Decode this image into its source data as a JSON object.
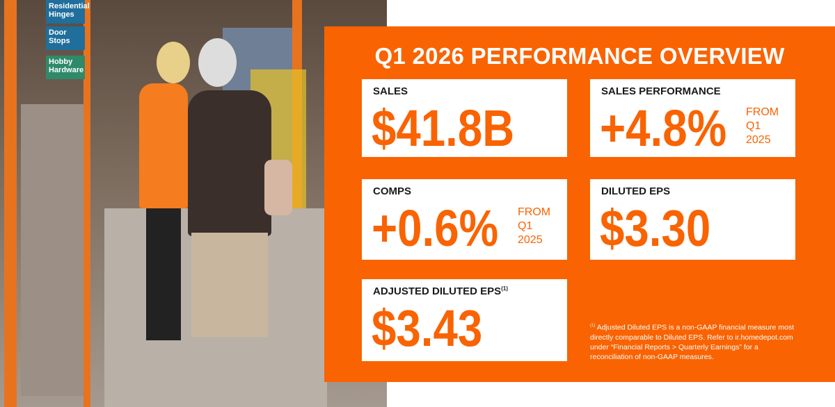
{
  "photo": {
    "signs": [
      "Residential Hinges",
      "Door Stops",
      "Hobby Hardware"
    ]
  },
  "title": "Q1 2026 PERFORMANCE OVERVIEW",
  "cards": [
    {
      "label": "SALES",
      "value": "$41.8B"
    },
    {
      "label": "SALES PERFORMANCE",
      "value": "+4.8%",
      "note": [
        "FROM",
        "Q1",
        "2025"
      ]
    },
    {
      "label": "COMPS",
      "value": "+0.6%",
      "note": [
        "FROM",
        "Q1",
        "2025"
      ]
    },
    {
      "label": "DILUTED EPS",
      "value": "$3.30"
    },
    {
      "label": "ADJUSTED DILUTED EPS",
      "marker": "(1)",
      "value": "$3.43"
    }
  ],
  "footnote": {
    "marker": "(1)",
    "text": "Adjusted Diluted EPS is a non-GAAP financial measure most directly comparable to Diluted EPS. Refer to ir.homedepot.com under “Financial Reports > Quarterly Earnings” for a reconciliation of non-GAAP measures."
  }
}
